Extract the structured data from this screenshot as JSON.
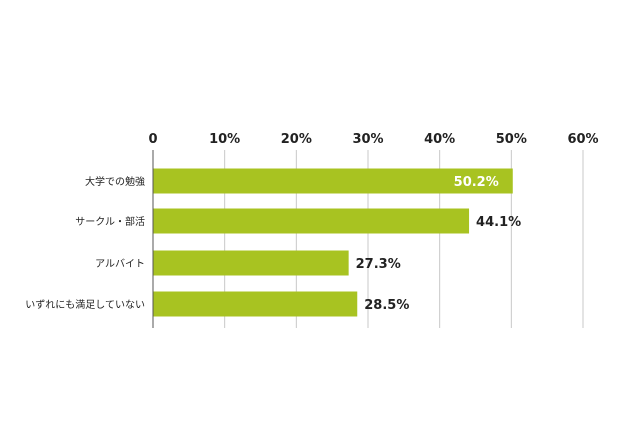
{
  "chart_data": {
    "type": "bar",
    "orientation": "horizontal",
    "categories": [
      "大学での勉強",
      "サークル・部活",
      "アルバイト",
      "いずれにも満足していない"
    ],
    "values": [
      50.2,
      44.1,
      27.3,
      28.5
    ],
    "value_labels": [
      "50.2%",
      "44.1%",
      "27.3%",
      "28.5%"
    ],
    "x_ticks": [
      "0",
      "10%",
      "20%",
      "30%",
      "40%",
      "50%",
      "60%"
    ],
    "xlim": [
      0,
      60
    ],
    "grid": true,
    "legend": "none",
    "colors": {
      "bar": "#a8c321",
      "grid": "#c8c8c8",
      "axis": "#555555",
      "label_inside": "#ffffff",
      "label_outside": "#222222"
    }
  }
}
